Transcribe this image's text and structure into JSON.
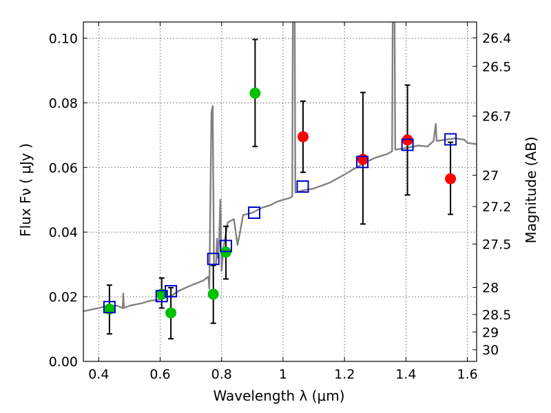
{
  "chart_data": {
    "type": "scatter",
    "xlabel": "Wavelength  λ (μm)",
    "ylabel": "Flux  Fν  ( μJy )",
    "ylabel_right": "Magnitude (AB)",
    "xlim": [
      0.35,
      1.63
    ],
    "ylim": [
      0.0,
      0.105
    ],
    "x_ticks": [
      0.4,
      0.6,
      0.8,
      1.0,
      1.2,
      1.4,
      1.6
    ],
    "x_tick_labels": [
      "0.4",
      "0.6",
      "0.8",
      "1",
      "1.2",
      "1.4",
      "1.6"
    ],
    "y_ticks": [
      0.0,
      0.02,
      0.04,
      0.06,
      0.08,
      0.1
    ],
    "y_tick_labels": [
      "0.00",
      "0.02",
      "0.04",
      "0.06",
      "0.08",
      "0.10"
    ],
    "right_ticks": [
      {
        "label": "26.4",
        "flux": 0.1001
      },
      {
        "label": "26.5",
        "flux": 0.0913
      },
      {
        "label": "26.7",
        "flux": 0.0759
      },
      {
        "label": "27",
        "flux": 0.0576
      },
      {
        "label": "27.2",
        "flux": 0.0479
      },
      {
        "label": "27.5",
        "flux": 0.0363
      },
      {
        "label": "28",
        "flux": 0.0229
      },
      {
        "label": "28.5",
        "flux": 0.0145
      },
      {
        "label": "29",
        "flux": 0.0091
      },
      {
        "label": "30",
        "flux": 0.0036
      }
    ],
    "grid": true,
    "colors": {
      "spectrum": "#808080",
      "green": "#00c000",
      "red": "#ff0000",
      "model_box": "#0000cc",
      "errorbar": "#000000"
    },
    "series": [
      {
        "kind": "line",
        "points": [
          [
            0.35,
            0.0155
          ],
          [
            0.4,
            0.0165
          ],
          [
            0.43,
            0.0172
          ],
          [
            0.46,
            0.0172
          ],
          [
            0.478,
            0.0165
          ],
          [
            0.48,
            0.021
          ],
          [
            0.482,
            0.0165
          ],
          [
            0.5,
            0.0172
          ],
          [
            0.54,
            0.018
          ],
          [
            0.57,
            0.0188
          ],
          [
            0.59,
            0.019
          ],
          [
            0.61,
            0.0195
          ],
          [
            0.64,
            0.0205
          ],
          [
            0.66,
            0.0218
          ],
          [
            0.7,
            0.0235
          ],
          [
            0.74,
            0.025
          ],
          [
            0.757,
            0.0262
          ],
          [
            0.76,
            0.0225
          ],
          [
            0.767,
            0.077
          ],
          [
            0.771,
            0.079
          ],
          [
            0.775,
            0.03
          ],
          [
            0.782,
            0.03
          ],
          [
            0.785,
            0.038
          ],
          [
            0.787,
            0.032
          ],
          [
            0.792,
            0.038
          ],
          [
            0.796,
            0.05
          ],
          [
            0.8,
            0.028
          ],
          [
            0.806,
            0.035
          ],
          [
            0.82,
            0.043
          ],
          [
            0.84,
            0.044
          ],
          [
            0.852,
            0.036
          ],
          [
            0.86,
            0.04
          ],
          [
            0.87,
            0.0453
          ],
          [
            0.9,
            0.046
          ],
          [
            0.93,
            0.0475
          ],
          [
            0.96,
            0.0484
          ],
          [
            0.98,
            0.0494
          ],
          [
            1.0,
            0.05
          ],
          [
            1.02,
            0.0505
          ],
          [
            1.03,
            0.051
          ],
          [
            1.033,
            0.13
          ],
          [
            1.037,
            0.13
          ],
          [
            1.04,
            0.0522
          ],
          [
            1.06,
            0.0528
          ],
          [
            1.1,
            0.0535
          ],
          [
            1.15,
            0.0552
          ],
          [
            1.2,
            0.0578
          ],
          [
            1.26,
            0.0612
          ],
          [
            1.3,
            0.063
          ],
          [
            1.34,
            0.0642
          ],
          [
            1.355,
            0.065
          ],
          [
            1.358,
            0.13
          ],
          [
            1.362,
            0.13
          ],
          [
            1.365,
            0.0655
          ],
          [
            1.4,
            0.066
          ],
          [
            1.44,
            0.0668
          ],
          [
            1.47,
            0.0665
          ],
          [
            1.49,
            0.0682
          ],
          [
            1.497,
            0.0735
          ],
          [
            1.5,
            0.0682
          ],
          [
            1.52,
            0.0685
          ],
          [
            1.56,
            0.069
          ],
          [
            1.59,
            0.0686
          ],
          [
            1.6,
            0.0676
          ],
          [
            1.63,
            0.0672
          ]
        ]
      },
      {
        "kind": "errorbar_points",
        "color": "green",
        "points": [
          {
            "x": 0.435,
            "y": 0.0162,
            "lo": 0.0085,
            "hi": 0.0236
          },
          {
            "x": 0.605,
            "y": 0.0208,
            "lo": 0.0165,
            "hi": 0.0258
          },
          {
            "x": 0.635,
            "y": 0.015,
            "lo": 0.007,
            "hi": 0.0228
          },
          {
            "x": 0.773,
            "y": 0.0208,
            "lo": 0.0118,
            "hi": 0.0297
          },
          {
            "x": 0.814,
            "y": 0.0338,
            "lo": 0.0255,
            "hi": 0.0418
          },
          {
            "x": 0.909,
            "y": 0.083,
            "lo": 0.0665,
            "hi": 0.0996
          }
        ]
      },
      {
        "kind": "errorbar_points",
        "color": "red",
        "points": [
          {
            "x": 1.065,
            "y": 0.0695,
            "lo": 0.0585,
            "hi": 0.0805
          },
          {
            "x": 1.26,
            "y": 0.0625,
            "lo": 0.0425,
            "hi": 0.0832
          },
          {
            "x": 1.405,
            "y": 0.0685,
            "lo": 0.0515,
            "hi": 0.0855
          },
          {
            "x": 1.545,
            "y": 0.0565,
            "lo": 0.0455,
            "hi": 0.0678
          }
        ]
      },
      {
        "kind": "squares",
        "color": "model_box",
        "points": [
          {
            "x": 0.435,
            "y": 0.0168
          },
          {
            "x": 0.605,
            "y": 0.0202
          },
          {
            "x": 0.635,
            "y": 0.0217
          },
          {
            "x": 0.773,
            "y": 0.0317
          },
          {
            "x": 0.814,
            "y": 0.0357
          },
          {
            "x": 0.906,
            "y": 0.046
          },
          {
            "x": 1.064,
            "y": 0.0541
          },
          {
            "x": 1.258,
            "y": 0.0617
          },
          {
            "x": 1.405,
            "y": 0.067
          },
          {
            "x": 1.545,
            "y": 0.0687
          }
        ]
      }
    ]
  }
}
